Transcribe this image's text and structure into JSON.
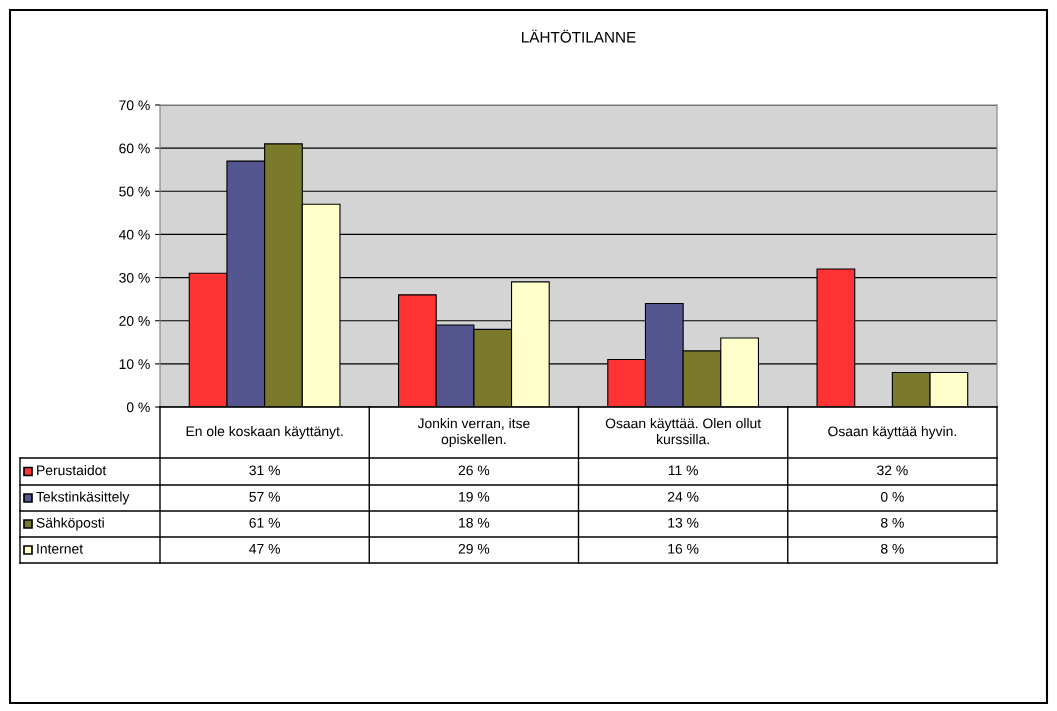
{
  "chart_data": {
    "type": "bar",
    "title": "LÄHTÖTILANNE",
    "categories": [
      "En ole koskaan käyttänyt.",
      "Jonkin verran, itse\nopiskellen.",
      "Osaan käyttää. Olen ollut\nkurssilla.",
      "Osaan käyttää hyvin."
    ],
    "series": [
      {
        "name": "Perustaidot",
        "color": "#ff3333",
        "values": [
          31,
          26,
          11,
          32
        ],
        "value_labels": [
          "31 %",
          "26 %",
          "11 %",
          "32 %"
        ]
      },
      {
        "name": "Tekstinkäsittely",
        "color": "#55558f",
        "values": [
          57,
          19,
          24,
          0
        ],
        "value_labels": [
          "57 %",
          "19 %",
          "24 %",
          "0 %"
        ]
      },
      {
        "name": "Sähköposti",
        "color": "#7a7a2a",
        "values": [
          61,
          18,
          13,
          8
        ],
        "value_labels": [
          "61 %",
          "18 %",
          "13 %",
          "8 %"
        ]
      },
      {
        "name": "Internet",
        "color": "#ffffcc",
        "values": [
          47,
          29,
          16,
          8
        ],
        "value_labels": [
          "47 %",
          "29 %",
          "16 %",
          "8 %"
        ]
      }
    ],
    "ylim": [
      0,
      70
    ],
    "yticks": [
      {
        "value": 0,
        "label": "0 %"
      },
      {
        "value": 10,
        "label": "10 %"
      },
      {
        "value": 20,
        "label": "20 %"
      },
      {
        "value": 30,
        "label": "30 %"
      },
      {
        "value": 40,
        "label": "40 %"
      },
      {
        "value": 50,
        "label": "50 %"
      },
      {
        "value": 60,
        "label": "60 %"
      },
      {
        "value": 70,
        "label": "70 %"
      }
    ],
    "grid": "y",
    "legend": "bottom left"
  }
}
